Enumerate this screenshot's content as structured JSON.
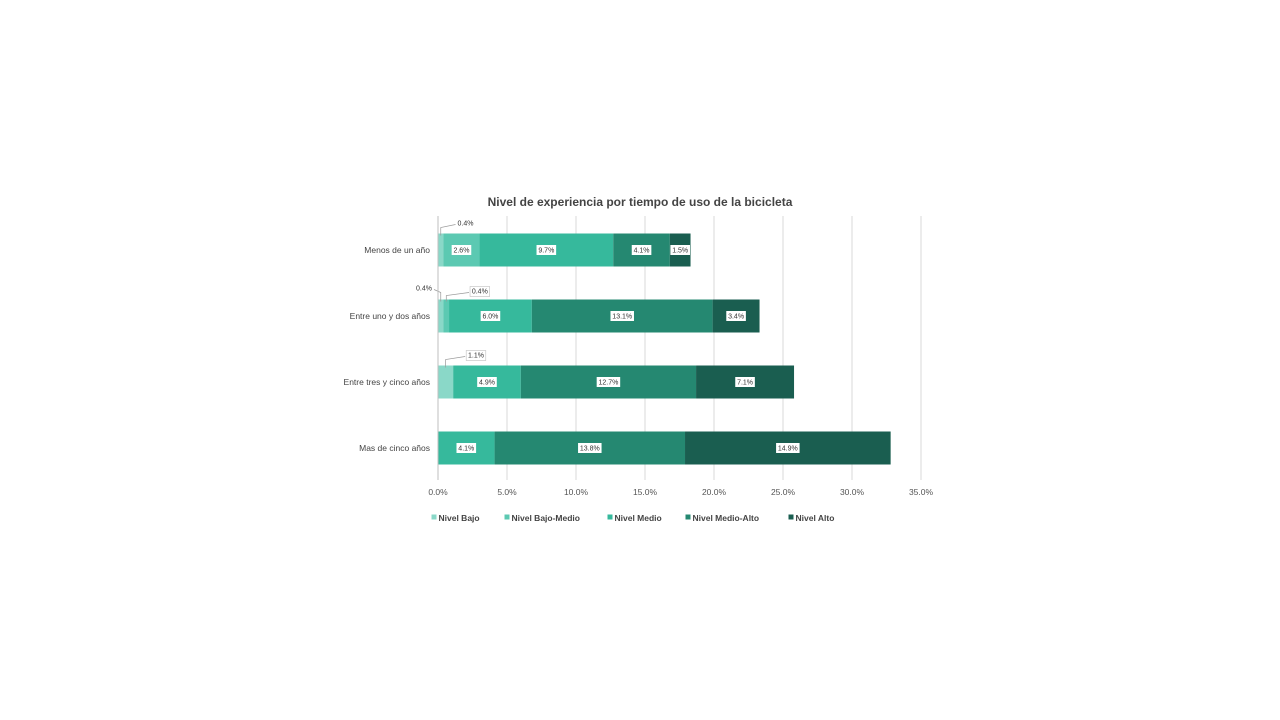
{
  "chart_data": {
    "type": "bar",
    "orientation": "horizontal",
    "stacked": true,
    "title": "Nivel de experiencia por tiempo de uso de la bicicleta",
    "categories": [
      "Menos de un año",
      "Entre uno y dos años",
      "Entre tres y cinco años",
      "Mas de cinco años"
    ],
    "series": [
      {
        "name": "Nivel Bajo",
        "color": "#8ad8c8",
        "values": [
          0.4,
          0.4,
          1.1,
          0
        ],
        "labels": [
          "0.4%",
          "0.4%",
          "1.1%",
          ""
        ]
      },
      {
        "name": "Nivel Bajo-Medio",
        "color": "#5cc9b2",
        "values": [
          2.6,
          0.4,
          0,
          0
        ],
        "labels": [
          "2.6%",
          "0.4%",
          "",
          ""
        ]
      },
      {
        "name": "Nivel Medio",
        "color": "#36b99c",
        "values": [
          9.7,
          6.0,
          4.9,
          4.1
        ],
        "labels": [
          "9.7%",
          "6.0%",
          "4.9%",
          "4.1%"
        ]
      },
      {
        "name": "Nivel Medio-Alto",
        "color": "#258871",
        "values": [
          4.1,
          13.1,
          12.7,
          13.8
        ],
        "labels": [
          "4.1%",
          "13.1%",
          "12.7%",
          "13.8%"
        ]
      },
      {
        "name": "Nivel Alto",
        "color": "#1a5e50",
        "values": [
          1.5,
          3.4,
          7.1,
          14.9
        ],
        "labels": [
          "1.5%",
          "3.4%",
          "7.1%",
          "14.9%"
        ]
      }
    ],
    "xlim": [
      0,
      35
    ],
    "x_ticks": [
      "0.0%",
      "5.0%",
      "10.0%",
      "15.0%",
      "20.0%",
      "25.0%",
      "30.0%",
      "35.0%"
    ],
    "grid": true,
    "legend_position": "bottom"
  }
}
